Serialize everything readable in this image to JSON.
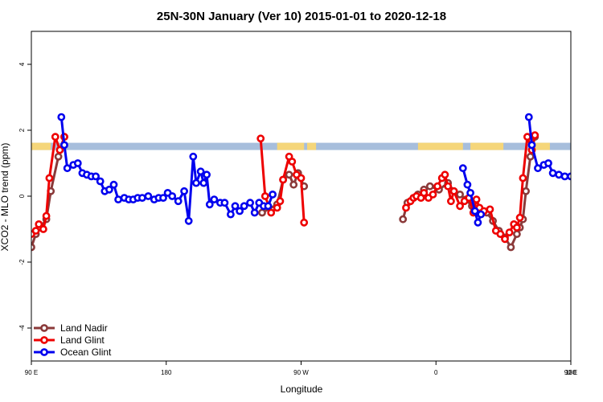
{
  "chart_data": {
    "type": "line",
    "title": "25N-30N January (Ver 10)   2015-01-01 to 2020-12-18",
    "xlabel": "Longitude",
    "ylabel": "XCO2 - MLO trend (ppm)",
    "xlim": [
      90,
      450
    ],
    "ylim": [
      -5,
      5
    ],
    "x_ticks": [
      {
        "value": 90,
        "label": "90 E"
      },
      {
        "value": 180,
        "label": "180"
      },
      {
        "value": 270,
        "label": "90 W"
      },
      {
        "value": 360,
        "label": "0"
      },
      {
        "value": 450,
        "label": "90 E"
      },
      {
        "value": 540,
        "label": "180"
      }
    ],
    "y_ticks": [
      -4,
      -2,
      0,
      2,
      4
    ],
    "grid": false,
    "legend_position": "bottom-left",
    "land_band": {
      "y_min": 1.4,
      "y_max": 1.62,
      "ocean_color": "#a7bedc",
      "land_color": "#f5d67a",
      "land_ranges": [
        [
          90,
          103
        ],
        [
          254,
          272
        ],
        [
          274,
          280
        ],
        [
          348,
          378
        ],
        [
          383,
          405
        ],
        [
          426,
          436
        ]
      ]
    },
    "series": [
      {
        "name": "Land Nadir",
        "color": "#8b3a3a",
        "segments": [
          [
            [
              90,
              -1.55
            ],
            [
              93,
              -1.15
            ],
            [
              96,
              -0.95
            ],
            [
              100,
              -0.7
            ],
            [
              103,
              0.15
            ],
            [
              108,
              1.2
            ],
            [
              112,
              1.8
            ]
          ],
          [
            [
              244,
              -0.5
            ],
            [
              254,
              -0.25
            ],
            [
              258,
              0.5
            ],
            [
              262,
              0.65
            ],
            [
              265,
              0.35
            ],
            [
              268,
              0.7
            ],
            [
              272,
              0.3
            ]
          ],
          [
            [
              338,
              -0.7
            ],
            [
              341,
              -0.2
            ],
            [
              345,
              -0.05
            ],
            [
              348,
              0.05
            ],
            [
              352,
              0.2
            ],
            [
              356,
              0.3
            ],
            [
              362,
              0.2
            ],
            [
              368,
              0.4
            ],
            [
              372,
              0.15
            ],
            [
              376,
              0.05
            ],
            [
              380,
              -0.1
            ],
            [
              384,
              -0.3
            ],
            [
              388,
              -0.45
            ],
            [
              394,
              -0.5
            ],
            [
              398,
              -0.75
            ],
            [
              402,
              -1.05
            ],
            [
              406,
              -1.25
            ],
            [
              410,
              -1.55
            ],
            [
              414,
              -1.15
            ],
            [
              416,
              -0.95
            ],
            [
              418,
              -0.7
            ],
            [
              420,
              0.15
            ],
            [
              423,
              1.2
            ],
            [
              426,
              1.8
            ]
          ]
        ]
      },
      {
        "name": "Land Glint",
        "color": "#ee0000",
        "segments": [
          [
            [
              90,
              -1.15
            ],
            [
              93,
              -1.05
            ],
            [
              95,
              -0.85
            ],
            [
              98,
              -1.0
            ],
            [
              100,
              -0.6
            ],
            [
              102,
              0.55
            ],
            [
              106,
              1.8
            ],
            [
              109,
              1.4
            ],
            [
              112,
              1.8
            ]
          ],
          [
            [
              243,
              1.75
            ],
            [
              246,
              0.0
            ],
            [
              250,
              -0.5
            ],
            [
              254,
              -0.35
            ],
            [
              256,
              -0.15
            ],
            [
              258,
              0.5
            ],
            [
              262,
              1.2
            ],
            [
              264,
              1.05
            ],
            [
              267,
              0.65
            ],
            [
              270,
              0.55
            ],
            [
              272,
              -0.8
            ]
          ],
          [
            [
              340,
              -0.35
            ],
            [
              343,
              -0.15
            ],
            [
              345,
              -0.05
            ],
            [
              347,
              0.0
            ],
            [
              350,
              -0.05
            ],
            [
              352,
              0.1
            ],
            [
              355,
              -0.05
            ],
            [
              358,
              0.05
            ],
            [
              361,
              0.3
            ],
            [
              364,
              0.55
            ],
            [
              366,
              0.65
            ],
            [
              368,
              0.3
            ],
            [
              370,
              -0.15
            ],
            [
              372,
              0.15
            ],
            [
              376,
              -0.3
            ],
            [
              379,
              -0.15
            ],
            [
              382,
              -0.05
            ],
            [
              385,
              -0.5
            ],
            [
              387,
              -0.1
            ],
            [
              389,
              -0.35
            ],
            [
              392,
              -0.45
            ],
            [
              396,
              -0.4
            ],
            [
              400,
              -1.05
            ],
            [
              403,
              -1.15
            ],
            [
              406,
              -1.3
            ],
            [
              409,
              -1.1
            ],
            [
              412,
              -0.85
            ],
            [
              414,
              -0.95
            ],
            [
              416,
              -0.65
            ],
            [
              418,
              0.55
            ],
            [
              421,
              1.8
            ],
            [
              424,
              1.4
            ],
            [
              426,
              1.85
            ]
          ]
        ]
      },
      {
        "name": "Ocean Glint",
        "color": "#0000ee",
        "segments": [
          [
            [
              110,
              2.4
            ],
            [
              112,
              1.55
            ],
            [
              114,
              0.85
            ],
            [
              118,
              0.95
            ],
            [
              121,
              1.0
            ],
            [
              124,
              0.7
            ],
            [
              127,
              0.65
            ],
            [
              130,
              0.6
            ],
            [
              133,
              0.6
            ],
            [
              136,
              0.45
            ],
            [
              139,
              0.15
            ],
            [
              142,
              0.2
            ],
            [
              145,
              0.35
            ],
            [
              148,
              -0.1
            ],
            [
              152,
              -0.05
            ],
            [
              155,
              -0.1
            ],
            [
              158,
              -0.1
            ],
            [
              161,
              -0.05
            ],
            [
              164,
              -0.05
            ],
            [
              168,
              0.0
            ],
            [
              172,
              -0.1
            ],
            [
              175,
              -0.05
            ],
            [
              178,
              -0.05
            ],
            [
              181,
              0.1
            ],
            [
              184,
              0.0
            ],
            [
              188,
              -0.15
            ],
            [
              192,
              0.15
            ],
            [
              195,
              -0.75
            ],
            [
              198,
              1.2
            ],
            [
              200,
              0.4
            ],
            [
              203,
              0.75
            ],
            [
              205,
              0.4
            ],
            [
              207,
              0.65
            ],
            [
              209,
              -0.25
            ],
            [
              212,
              -0.1
            ],
            [
              216,
              -0.2
            ],
            [
              219,
              -0.2
            ],
            [
              223,
              -0.55
            ],
            [
              226,
              -0.3
            ],
            [
              229,
              -0.45
            ],
            [
              232,
              -0.3
            ],
            [
              236,
              -0.2
            ],
            [
              239,
              -0.5
            ],
            [
              242,
              -0.2
            ],
            [
              245,
              -0.3
            ],
            [
              248,
              -0.3
            ],
            [
              251,
              0.05
            ]
          ],
          [
            [
              378,
              0.85
            ],
            [
              381,
              0.35
            ],
            [
              383,
              0.1
            ],
            [
              386,
              -0.45
            ],
            [
              388,
              -0.8
            ],
            [
              390,
              -0.55
            ]
          ],
          [
            [
              422,
              2.4
            ],
            [
              424,
              1.55
            ],
            [
              428,
              0.85
            ],
            [
              432,
              0.95
            ],
            [
              435,
              1.0
            ],
            [
              438,
              0.7
            ],
            [
              442,
              0.65
            ],
            [
              446,
              0.6
            ],
            [
              450,
              0.6
            ],
            [
              454,
              0.45
            ],
            [
              458,
              0.15
            ],
            [
              462,
              0.2
            ],
            [
              466,
              0.35
            ]
          ]
        ]
      }
    ]
  }
}
